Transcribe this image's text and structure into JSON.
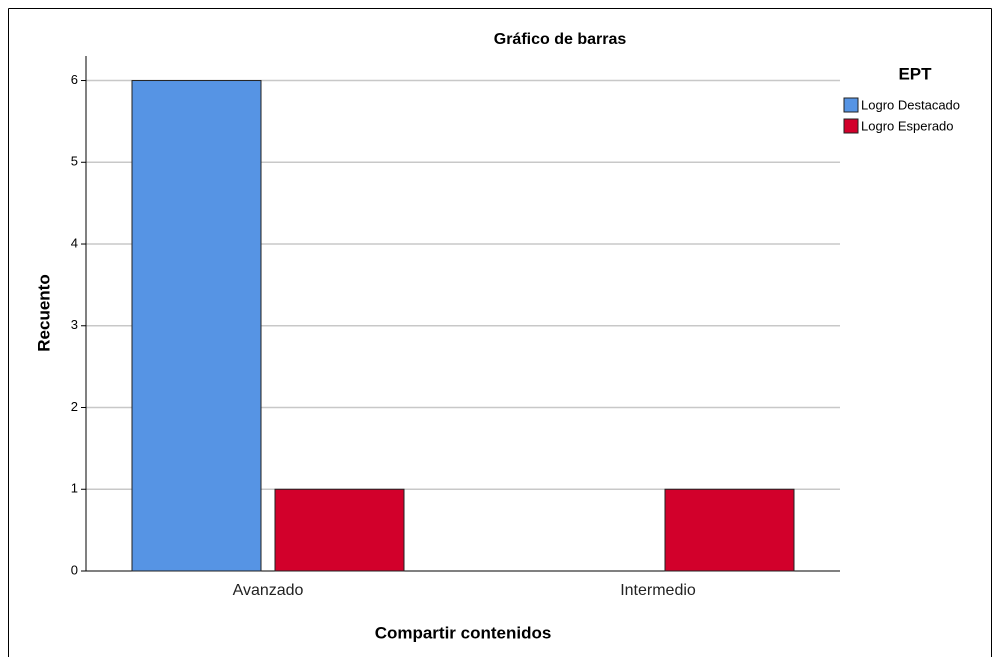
{
  "chart_data": {
    "type": "bar",
    "title": "Gráfico de barras",
    "x_label": "Compartir contenidos",
    "y_label": "Recuento",
    "categories": [
      "Avanzado",
      "Intermedio"
    ],
    "series": [
      {
        "name": "Logro Destacado",
        "color": "#5694e4",
        "values": [
          6,
          0
        ]
      },
      {
        "name": "Logro Esperado",
        "color": "#d2002b",
        "values": [
          1,
          1
        ]
      }
    ],
    "legend_title": "EPT",
    "legend": "right",
    "ylim": [
      0,
      6.3
    ],
    "yticks": [
      0,
      1,
      2,
      3,
      4,
      5,
      6
    ],
    "grid": true
  }
}
